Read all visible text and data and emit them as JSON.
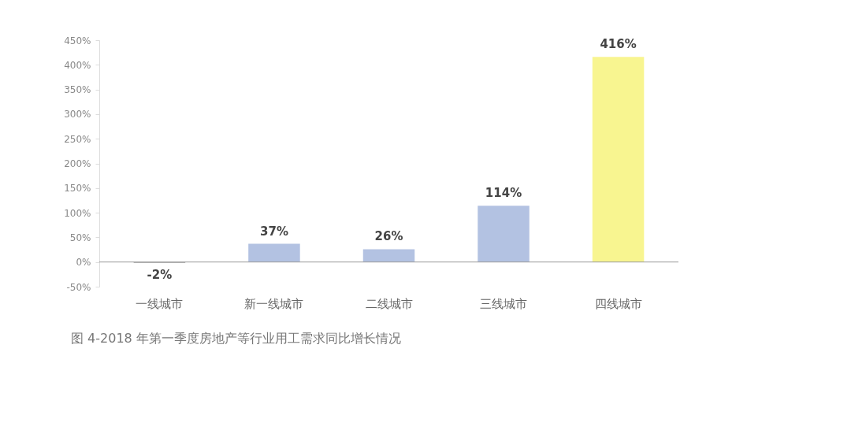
{
  "chart_data": {
    "type": "bar",
    "categories": [
      "一线城市",
      "新一线城市",
      "二线城市",
      "三线城市",
      "四线城市"
    ],
    "values": [
      -2,
      37,
      26,
      114,
      416
    ],
    "colors": [
      "#b4b4b4",
      "#b3c2e2",
      "#b3c2e2",
      "#b3c2e2",
      "#f8f590"
    ],
    "value_labels": [
      "-2%",
      "37%",
      "26%",
      "114%",
      "416%"
    ],
    "ylim": [
      -50,
      450
    ],
    "yticks": [
      {
        "value": -50,
        "label": "-50%"
      },
      {
        "value": 0,
        "label": "0%"
      },
      {
        "value": 50,
        "label": "50%"
      },
      {
        "value": 100,
        "label": "100%"
      },
      {
        "value": 150,
        "label": "150%"
      },
      {
        "value": 200,
        "label": "200%"
      },
      {
        "value": 250,
        "label": "250%"
      },
      {
        "value": 300,
        "label": "300%"
      },
      {
        "value": 350,
        "label": "350%"
      },
      {
        "value": 400,
        "label": "400%"
      },
      {
        "value": 450,
        "label": "450%"
      }
    ],
    "ref_lines": [
      {
        "axis": "y",
        "value": 0,
        "color": "#999999"
      }
    ],
    "grid": false,
    "legend": false,
    "annotations": [
      "图 4-2018 年第一季度房地产等行业用工需求同比增长情况"
    ]
  }
}
